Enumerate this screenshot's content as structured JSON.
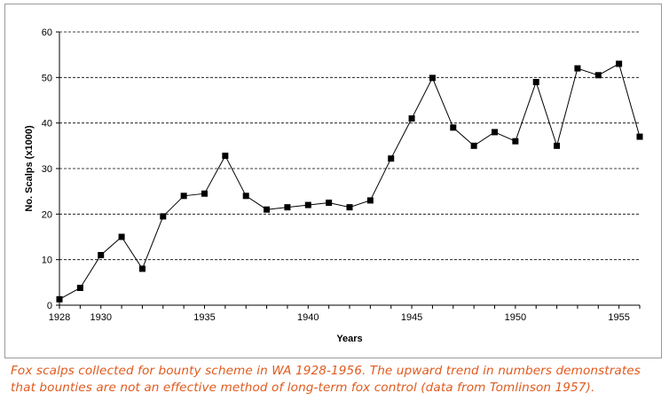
{
  "chart_data": {
    "type": "line",
    "title": "",
    "xlabel": "Years",
    "ylabel": "No. Scalps (x1000)",
    "xlim": [
      1928,
      1956
    ],
    "ylim": [
      0,
      60
    ],
    "yticks": [
      "0",
      "10",
      "20",
      "30",
      "40",
      "50",
      "60"
    ],
    "xticks": [
      "1928",
      "1930",
      "1935",
      "1940",
      "1945",
      "1950",
      "1955"
    ],
    "grid": "horizontal dashed",
    "marker": "square",
    "line_color": "#000000",
    "points": [
      {
        "x": 1928,
        "y": 1.3
      },
      {
        "x": 1929,
        "y": 3.8
      },
      {
        "x": 1930,
        "y": 11
      },
      {
        "x": 1931,
        "y": 15
      },
      {
        "x": 1932,
        "y": 8
      },
      {
        "x": 1933,
        "y": 19.5
      },
      {
        "x": 1934,
        "y": 24
      },
      {
        "x": 1935,
        "y": 24.5
      },
      {
        "x": 1936,
        "y": 32.8
      },
      {
        "x": 1937,
        "y": 24
      },
      {
        "x": 1938,
        "y": 21
      },
      {
        "x": 1939,
        "y": 21.5
      },
      {
        "x": 1940,
        "y": 22
      },
      {
        "x": 1941,
        "y": 22.5
      },
      {
        "x": 1942,
        "y": 21.5
      },
      {
        "x": 1943,
        "y": 23
      },
      {
        "x": 1944,
        "y": 32.2
      },
      {
        "x": 1945,
        "y": 41
      },
      {
        "x": 1946,
        "y": 49.9
      },
      {
        "x": 1947,
        "y": 39
      },
      {
        "x": 1948,
        "y": 35
      },
      {
        "x": 1949,
        "y": 38
      },
      {
        "x": 1950,
        "y": 36
      },
      {
        "x": 1951,
        "y": 49
      },
      {
        "x": 1952,
        "y": 35
      },
      {
        "x": 1953,
        "y": 52
      },
      {
        "x": 1954,
        "y": 50.5
      },
      {
        "x": 1955,
        "y": 53
      },
      {
        "x": 1956,
        "y": 37
      }
    ]
  },
  "caption": {
    "line1": "Fox scalps collected for bounty scheme in WA 1928-1956. The upward trend in numbers demonstrates",
    "line2": "that bounties are not an effective method of long-term fox control (data from Tomlinson 1957).",
    "color": "#e05a1e"
  }
}
